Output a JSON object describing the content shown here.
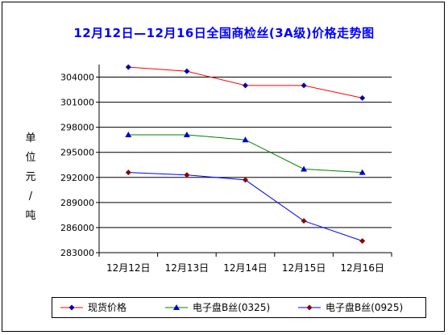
{
  "chart_data": {
    "type": "line",
    "title": "12月12日—12月16日全国商检丝(3A级)价格走势图",
    "ylabel": "单位 元/吨",
    "ylabel_chars": [
      "单",
      "位",
      "元",
      "/",
      "吨"
    ],
    "categories": [
      "12月12日",
      "12月13日",
      "12月14日",
      "12月15日",
      "12月16日"
    ],
    "ylim": [
      283000,
      305500
    ],
    "yticks": [
      283000,
      286000,
      289000,
      292000,
      295000,
      298000,
      301000,
      304000
    ],
    "ytick_labels": [
      "283000",
      "286000",
      "289000",
      "292000",
      "295000",
      "298000",
      "301000",
      "304000"
    ],
    "grid": true,
    "legend": "bottom",
    "series": [
      {
        "name": "现货价格",
        "values": [
          305200,
          304700,
          303000,
          303000,
          301500
        ],
        "color": "#ff0000",
        "marker": "diamond",
        "marker_color": "#0000aa"
      },
      {
        "name": "电子盘B丝(0325)",
        "values": [
          297100,
          297100,
          296500,
          293000,
          292600
        ],
        "color": "#008000",
        "marker": "triangle",
        "marker_color": "#0000cc"
      },
      {
        "name": "电子盘B丝(0925)",
        "values": [
          292600,
          292300,
          291700,
          286800,
          284400
        ],
        "color": "#0000ff",
        "marker": "diamond",
        "marker_color": "#8b0000"
      }
    ]
  }
}
